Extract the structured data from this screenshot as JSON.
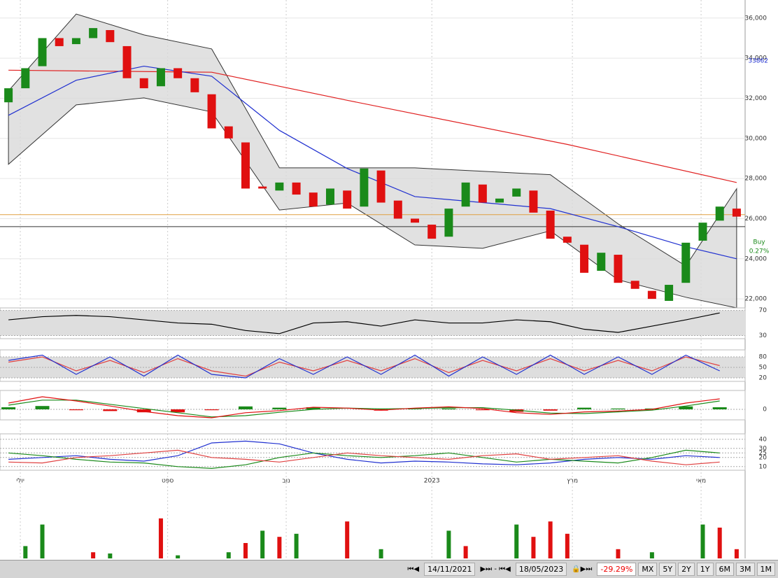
{
  "chart_data": [
    {
      "type": "candlestick",
      "xlim": [
        -0.5,
        43.5
      ],
      "xticks": [
        {
          "value": 0.7,
          "label": "יולי"
        },
        {
          "value": 9.4,
          "label": "ספט"
        },
        {
          "value": 16.4,
          "label": "נוב"
        },
        {
          "value": 25,
          "label": "2023"
        },
        {
          "value": 33.3,
          "label": "מרץ"
        },
        {
          "value": 40.9,
          "label": "מאי"
        }
      ],
      "ylim": [
        21550,
        36900
      ],
      "yticks": [
        {
          "value": 22000,
          "label": "22,000"
        },
        {
          "value": 24000,
          "label": "24,000"
        },
        {
          "value": 26000,
          "label": "26,000"
        },
        {
          "value": 28000,
          "label": "28,000"
        },
        {
          "value": 30000,
          "label": "30,000"
        },
        {
          "value": 32000,
          "label": "32,000"
        },
        {
          "value": 34000,
          "label": "34,000"
        },
        {
          "value": 36000,
          "label": "36,000"
        }
      ],
      "up_color": "#1a8a1a",
      "down_color": "#e01010",
      "open": [
        31800,
        32500,
        33600,
        35000,
        34700,
        35000,
        35400,
        34600,
        33000,
        32600,
        33500,
        33000,
        32200,
        30600,
        29800,
        27600,
        27400,
        27800,
        27300,
        26700,
        27400,
        26600,
        28400,
        26900,
        26000,
        25700,
        25100,
        26600,
        27700,
        26800,
        27100,
        27400,
        26400,
        25100,
        24700,
        23400,
        24200,
        22900,
        22400,
        21900,
        22800,
        24900,
        25900,
        26500
      ],
      "close": [
        32500,
        33500,
        35000,
        34600,
        35000,
        35500,
        34800,
        33000,
        32500,
        33500,
        33000,
        32300,
        30500,
        30000,
        27500,
        27500,
        27800,
        27200,
        26600,
        27500,
        26500,
        28500,
        26800,
        26000,
        25800,
        25000,
        26500,
        27800,
        26800,
        27000,
        27500,
        26300,
        25000,
        24800,
        23300,
        24300,
        22800,
        22500,
        22000,
        22700,
        24800,
        25800,
        26600,
        26100
      ],
      "bands": {
        "x": [
          0,
          4,
          8,
          12,
          16,
          20,
          24,
          28,
          32,
          36,
          40,
          43
        ],
        "upper": [
          32370,
          36200,
          35160,
          34460,
          28530,
          28530,
          28530,
          28360,
          28190,
          25740,
          23640,
          27490
        ],
        "lower": [
          28710,
          31670,
          32020,
          31320,
          26430,
          26780,
          24690,
          24520,
          25390,
          22950,
          22080,
          21550
        ]
      },
      "series": [
        {
          "color": "#e02020",
          "x": [
            0,
            12,
            20,
            33,
            43
          ],
          "values": [
            33400,
            33300,
            31900,
            29700,
            27800
          ]
        },
        {
          "color": "#2030d0",
          "x": [
            0,
            4,
            8,
            12,
            16,
            20,
            24,
            28,
            32,
            36,
            40,
            43
          ],
          "values": [
            31150,
            32900,
            33600,
            33100,
            30400,
            28500,
            27100,
            26800,
            26500,
            25600,
            24600,
            24000
          ]
        }
      ],
      "hlines": [
        {
          "value": 26200,
          "color": "#e0a040"
        },
        {
          "value": 25600,
          "color": "#333333"
        }
      ],
      "price_labels": [
        {
          "value": 33862,
          "color": "#2030d0"
        }
      ],
      "annotations": [
        "Buy",
        "0.27%"
      ],
      "annotation_color": "#1a8a1a"
    },
    {
      "type": "line",
      "ylim": [
        25,
        74
      ],
      "yticks": [
        30,
        70
      ],
      "shade": [
        30,
        70
      ],
      "series": [
        {
          "color": "#000000",
          "x": [
            0,
            2,
            4,
            6,
            8,
            10,
            12,
            14,
            16,
            18,
            20,
            22,
            24,
            26,
            28,
            30,
            32,
            34,
            36,
            38,
            40,
            42
          ],
          "values": [
            55,
            60,
            62,
            60,
            55,
            50,
            48,
            38,
            33,
            50,
            52,
            45,
            55,
            50,
            50,
            55,
            52,
            40,
            35,
            45,
            55,
            66
          ]
        }
      ]
    },
    {
      "type": "line",
      "ylim": [
        10,
        100
      ],
      "yticks": [
        20,
        50,
        80
      ],
      "shade": [
        20,
        80
      ],
      "series": [
        {
          "color": "#e04040",
          "x": [
            0,
            2,
            4,
            6,
            8,
            10,
            12,
            14,
            16,
            18,
            20,
            22,
            24,
            26,
            28,
            30,
            32,
            34,
            36,
            38,
            40,
            42
          ],
          "values": [
            65,
            80,
            40,
            70,
            35,
            75,
            40,
            25,
            65,
            40,
            70,
            40,
            75,
            35,
            70,
            40,
            75,
            40,
            70,
            40,
            80,
            55
          ]
        },
        {
          "color": "#2030d0",
          "x": [
            0,
            2,
            4,
            6,
            8,
            10,
            12,
            14,
            16,
            18,
            20,
            22,
            24,
            26,
            28,
            30,
            32,
            34,
            36,
            38,
            40,
            42
          ],
          "values": [
            70,
            85,
            30,
            80,
            25,
            85,
            30,
            20,
            75,
            30,
            80,
            30,
            85,
            25,
            80,
            30,
            85,
            30,
            80,
            30,
            85,
            40
          ]
        }
      ]
    },
    {
      "type": "line",
      "ylim": [
        -250,
        450
      ],
      "yticks": [
        0
      ],
      "histogram": {
        "x": [
          0,
          2,
          4,
          6,
          8,
          10,
          12,
          14,
          16,
          18,
          20,
          22,
          24,
          26,
          28,
          30,
          32,
          34,
          36,
          38,
          40,
          42
        ],
        "values": [
          50,
          80,
          -20,
          -40,
          -70,
          -70,
          -20,
          70,
          40,
          50,
          0,
          -30,
          10,
          20,
          -20,
          -60,
          -30,
          40,
          20,
          20,
          70,
          50
        ],
        "up_color": "#1a8a1a",
        "down_color": "#e01010"
      },
      "series": [
        {
          "color": "#1a8a1a",
          "x": [
            0,
            2,
            4,
            6,
            8,
            10,
            12,
            14,
            16,
            18,
            20,
            22,
            24,
            26,
            28,
            30,
            32,
            34,
            36,
            38,
            40,
            42
          ],
          "values": [
            100,
            220,
            220,
            120,
            20,
            -80,
            -180,
            -150,
            -70,
            0,
            30,
            10,
            20,
            40,
            40,
            -20,
            -90,
            -100,
            -60,
            -20,
            80,
            200
          ]
        },
        {
          "color": "#e01010",
          "x": [
            0,
            2,
            4,
            6,
            8,
            10,
            12,
            14,
            16,
            18,
            20,
            22,
            24,
            26,
            28,
            30,
            32,
            34,
            36,
            38,
            40,
            42
          ],
          "values": [
            150,
            300,
            200,
            80,
            -50,
            -150,
            -200,
            -80,
            -30,
            50,
            30,
            -20,
            30,
            60,
            20,
            -80,
            -120,
            -60,
            -40,
            0,
            150,
            250
          ]
        }
      ]
    },
    {
      "type": "line",
      "ylim": [
        6,
        46
      ],
      "yticks": [
        10,
        20,
        25,
        30,
        40
      ],
      "series": [
        {
          "color": "#2030d0",
          "x": [
            0,
            2,
            4,
            6,
            8,
            10,
            12,
            14,
            16,
            18,
            20,
            22,
            24,
            26,
            28,
            30,
            32,
            34,
            36,
            38,
            40,
            42
          ],
          "values": [
            18,
            20,
            22,
            18,
            16,
            22,
            36,
            38,
            35,
            25,
            18,
            14,
            16,
            15,
            13,
            12,
            14,
            18,
            20,
            18,
            22,
            20
          ]
        },
        {
          "color": "#1a8a1a",
          "x": [
            0,
            2,
            4,
            6,
            8,
            10,
            12,
            14,
            16,
            18,
            20,
            22,
            24,
            26,
            28,
            30,
            32,
            34,
            36,
            38,
            40,
            42
          ],
          "values": [
            25,
            22,
            18,
            15,
            14,
            10,
            8,
            12,
            20,
            25,
            22,
            20,
            22,
            25,
            20,
            15,
            18,
            16,
            14,
            20,
            28,
            25
          ]
        },
        {
          "color": "#e04040",
          "x": [
            0,
            2,
            4,
            6,
            8,
            10,
            12,
            14,
            16,
            18,
            20,
            22,
            24,
            26,
            28,
            30,
            32,
            34,
            36,
            38,
            40,
            42
          ],
          "values": [
            15,
            14,
            20,
            22,
            25,
            28,
            20,
            18,
            15,
            20,
            25,
            22,
            20,
            18,
            22,
            24,
            18,
            20,
            22,
            16,
            12,
            15
          ]
        }
      ]
    },
    {
      "type": "bar",
      "ylim": [
        0,
        100
      ],
      "x": [
        1,
        2,
        5,
        6,
        9,
        10,
        13,
        14,
        15,
        16,
        17,
        20,
        22,
        26,
        27,
        30,
        31,
        32,
        33,
        36,
        38,
        41,
        42,
        43
      ],
      "values": [
        20,
        55,
        10,
        8,
        65,
        5,
        10,
        25,
        45,
        35,
        40,
        60,
        15,
        45,
        20,
        55,
        35,
        60,
        40,
        15,
        10,
        55,
        50,
        15
      ],
      "colors": [
        "#1a8a1a",
        "#1a8a1a",
        "#e01010",
        "#1a8a1a",
        "#e01010",
        "#1a8a1a",
        "#1a8a1a",
        "#e01010",
        "#1a8a1a",
        "#e01010",
        "#1a8a1a",
        "#e01010",
        "#1a8a1a",
        "#1a8a1a",
        "#e01010",
        "#1a8a1a",
        "#e01010",
        "#e01010",
        "#e01010",
        "#e01010",
        "#1a8a1a",
        "#1a8a1a",
        "#e01010",
        "#e01010"
      ]
    }
  ],
  "toolbar": {
    "start": "14/11/2021",
    "end": "18/05/2023",
    "change": "-29.29%",
    "ranges": [
      "MX",
      "5Y",
      "2Y",
      "1Y",
      "6M",
      "3M",
      "1M"
    ]
  }
}
